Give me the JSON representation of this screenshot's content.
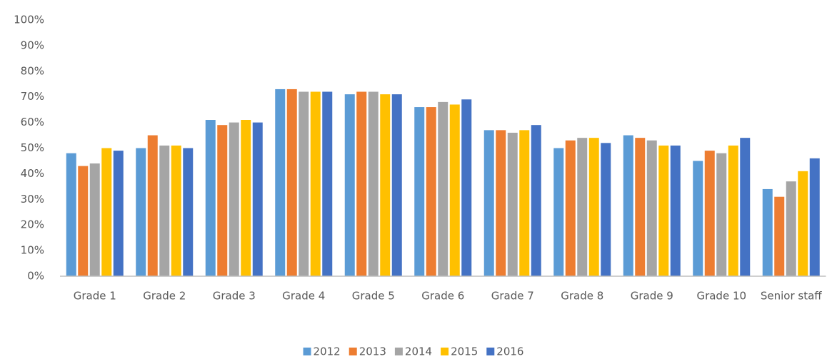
{
  "chart_data": {
    "type": "bar",
    "categories": [
      "Grade 1",
      "Grade 2",
      "Grade 3",
      "Grade 4",
      "Grade 5",
      "Grade 6",
      "Grade 7",
      "Grade 8",
      "Grade 9",
      "Grade 10",
      "Senior staff"
    ],
    "series": [
      {
        "name": "2012",
        "color": "#5b9bd5",
        "values": [
          48,
          50,
          61,
          73,
          71,
          66,
          57,
          50,
          55,
          45,
          34
        ]
      },
      {
        "name": "2013",
        "color": "#ed7d31",
        "values": [
          43,
          55,
          59,
          73,
          72,
          66,
          57,
          53,
          54,
          49,
          31
        ]
      },
      {
        "name": "2014",
        "color": "#a5a5a5",
        "values": [
          44,
          51,
          60,
          72,
          72,
          68,
          56,
          54,
          53,
          48,
          37
        ]
      },
      {
        "name": "2015",
        "color": "#ffc000",
        "values": [
          50,
          51,
          61,
          72,
          71,
          67,
          57,
          54,
          51,
          51,
          41
        ]
      },
      {
        "name": "2016",
        "color": "#4472c4",
        "values": [
          49,
          50,
          60,
          72,
          71,
          69,
          59,
          52,
          51,
          54,
          46
        ]
      }
    ],
    "ylim": [
      0,
      100
    ],
    "yticks": [
      {
        "value": 0,
        "label": "0%"
      },
      {
        "value": 10,
        "label": "10%"
      },
      {
        "value": 20,
        "label": "20%"
      },
      {
        "value": 30,
        "label": "30%"
      },
      {
        "value": 40,
        "label": "40%"
      },
      {
        "value": 50,
        "label": "50%"
      },
      {
        "value": 60,
        "label": "60%"
      },
      {
        "value": 70,
        "label": "70%"
      },
      {
        "value": 80,
        "label": "80%"
      },
      {
        "value": 90,
        "label": "90%"
      },
      {
        "value": 100,
        "label": "100%"
      }
    ],
    "grid": false,
    "legend": "bottom"
  }
}
